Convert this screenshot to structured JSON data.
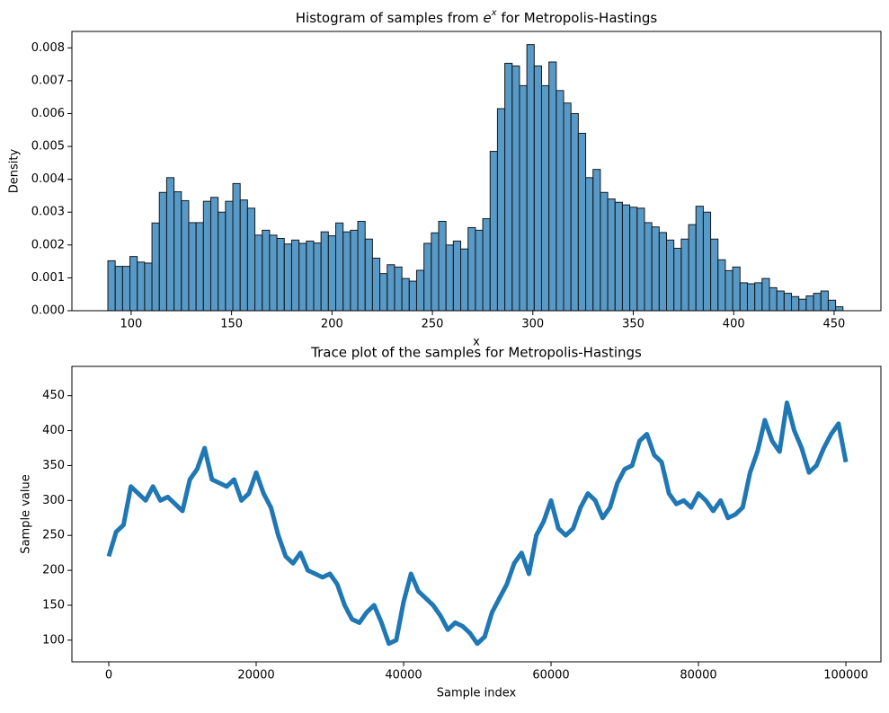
{
  "chart_data": [
    {
      "type": "histogram",
      "title": [
        "Histogram of samples from ",
        "e",
        "x",
        " for Metropolis-Hastings"
      ],
      "xlabel": "x",
      "ylabel": "Density",
      "color": "#1f77b4",
      "edgecolor": "#1a1a1a",
      "bins": [
        88.4,
        92.06,
        95.72,
        99.38,
        103.04,
        106.7,
        110.36,
        114.02,
        117.68,
        121.34,
        125,
        128.66,
        132.32,
        135.98,
        139.64,
        143.3,
        146.96,
        150.62,
        154.28,
        157.94,
        161.6,
        165.26,
        168.92,
        172.58,
        176.24,
        179.9,
        183.56,
        187.22,
        190.88,
        194.54,
        198.2,
        201.86,
        205.52,
        209.18,
        212.84,
        216.5,
        220.16,
        223.82,
        227.48,
        231.14,
        234.8,
        238.46,
        242.12,
        245.78,
        249.44,
        253.1,
        256.76,
        260.42,
        264.08,
        267.74,
        271.4,
        275.06,
        278.72,
        282.38,
        286.04,
        289.7,
        293.36,
        297.02,
        300.68,
        304.34,
        308,
        311.66,
        315.32,
        318.98,
        322.64,
        326.3,
        329.96,
        333.62,
        337.28,
        340.94,
        344.6,
        348.26,
        351.92,
        355.58,
        359.24,
        362.9,
        366.56,
        370.22,
        373.88,
        377.54,
        381.2,
        384.86,
        388.52,
        392.18,
        395.84,
        399.5,
        403.16,
        406.82,
        410.48,
        414.14,
        417.8,
        421.46,
        425.12,
        428.78,
        432.44,
        436.1,
        439.76,
        443.42,
        447.08,
        450.74,
        454.4
      ],
      "values": [
        0.00152,
        0.00135,
        0.00135,
        0.00165,
        0.00148,
        0.00145,
        0.00267,
        0.0036,
        0.00405,
        0.00362,
        0.00335,
        0.00268,
        0.00268,
        0.00333,
        0.00345,
        0.003,
        0.00333,
        0.00387,
        0.00337,
        0.00312,
        0.0023,
        0.00245,
        0.0023,
        0.0022,
        0.00203,
        0.00215,
        0.00205,
        0.00212,
        0.00206,
        0.0024,
        0.00228,
        0.00267,
        0.0024,
        0.00245,
        0.00272,
        0.00218,
        0.0016,
        0.00113,
        0.0014,
        0.00133,
        0.00098,
        0.0009,
        0.00123,
        0.00205,
        0.00237,
        0.00272,
        0.002,
        0.00212,
        0.00188,
        0.00253,
        0.00245,
        0.0028,
        0.00485,
        0.00615,
        0.00753,
        0.00745,
        0.00685,
        0.0081,
        0.00745,
        0.00685,
        0.00757,
        0.0067,
        0.00632,
        0.006,
        0.0054,
        0.00405,
        0.0043,
        0.0036,
        0.0034,
        0.0033,
        0.00322,
        0.00315,
        0.00312,
        0.00268,
        0.00255,
        0.00238,
        0.00215,
        0.0019,
        0.00218,
        0.00262,
        0.00318,
        0.003,
        0.00218,
        0.00155,
        0.00122,
        0.00133,
        0.00085,
        0.00082,
        0.00085,
        0.00098,
        0.0007,
        0.0006,
        0.00053,
        0.00043,
        0.00035,
        0.00045,
        0.00053,
        0.0006,
        0.00032,
        0.00012
      ],
      "xlim": [
        70.5,
        473.3
      ],
      "ylim": [
        0,
        0.0085
      ],
      "xticks": [
        100,
        150,
        200,
        250,
        300,
        350,
        400,
        450
      ],
      "yticks": [
        {
          "value": 0,
          "label": "0.000"
        },
        {
          "value": 0.001,
          "label": "0.001"
        },
        {
          "value": 0.002,
          "label": "0.002"
        },
        {
          "value": 0.003,
          "label": "0.003"
        },
        {
          "value": 0.004,
          "label": "0.004"
        },
        {
          "value": 0.005,
          "label": "0.005"
        },
        {
          "value": 0.006,
          "label": "0.006"
        },
        {
          "value": 0.007,
          "label": "0.007"
        },
        {
          "value": 0.008,
          "label": "0.008"
        }
      ],
      "grid": false
    },
    {
      "type": "line",
      "title": "Trace plot of the samples for Metropolis-Hastings",
      "xlabel": "Sample index",
      "ylabel": "Sample value",
      "color": "#1f77b4",
      "x": [
        0,
        1000,
        2000,
        3000,
        4000,
        5000,
        6000,
        7000,
        8000,
        9000,
        10000,
        11000,
        12000,
        13000,
        14000,
        15000,
        16000,
        17000,
        18000,
        19000,
        20000,
        21000,
        22000,
        23000,
        24000,
        25000,
        26000,
        27000,
        28000,
        29000,
        30000,
        31000,
        32000,
        33000,
        34000,
        35000,
        36000,
        37000,
        38000,
        39000,
        40000,
        41000,
        42000,
        43000,
        44000,
        45000,
        46000,
        47000,
        48000,
        49000,
        50000,
        51000,
        52000,
        53000,
        54000,
        55000,
        56000,
        57000,
        58000,
        59000,
        60000,
        61000,
        62000,
        63000,
        64000,
        65000,
        66000,
        67000,
        68000,
        69000,
        70000,
        71000,
        72000,
        73000,
        74000,
        75000,
        76000,
        77000,
        78000,
        79000,
        80000,
        81000,
        82000,
        83000,
        84000,
        85000,
        86000,
        87000,
        88000,
        89000,
        90000,
        91000,
        92000,
        93000,
        94000,
        95000,
        96000,
        97000,
        98000,
        99000,
        100000
      ],
      "values": [
        220,
        255,
        265,
        320,
        310,
        300,
        320,
        300,
        305,
        295,
        285,
        330,
        345,
        375,
        330,
        325,
        320,
        330,
        300,
        310,
        340,
        310,
        290,
        250,
        220,
        210,
        225,
        200,
        195,
        190,
        195,
        180,
        150,
        130,
        125,
        140,
        150,
        125,
        95,
        100,
        155,
        195,
        170,
        160,
        150,
        135,
        115,
        125,
        120,
        110,
        95,
        105,
        140,
        160,
        180,
        210,
        225,
        195,
        250,
        270,
        300,
        260,
        250,
        260,
        290,
        310,
        300,
        275,
        290,
        325,
        345,
        350,
        385,
        395,
        365,
        355,
        310,
        295,
        300,
        290,
        310,
        300,
        285,
        300,
        275,
        280,
        290,
        340,
        370,
        415,
        385,
        370,
        440,
        400,
        375,
        340,
        350,
        375,
        395,
        410,
        355
      ],
      "xlim": [
        -5000,
        104750
      ],
      "ylim": [
        69,
        492
      ],
      "xticks": [
        0,
        20000,
        40000,
        60000,
        80000,
        100000
      ],
      "yticks": [
        100,
        150,
        200,
        250,
        300,
        350,
        400,
        450
      ],
      "grid": false
    }
  ]
}
